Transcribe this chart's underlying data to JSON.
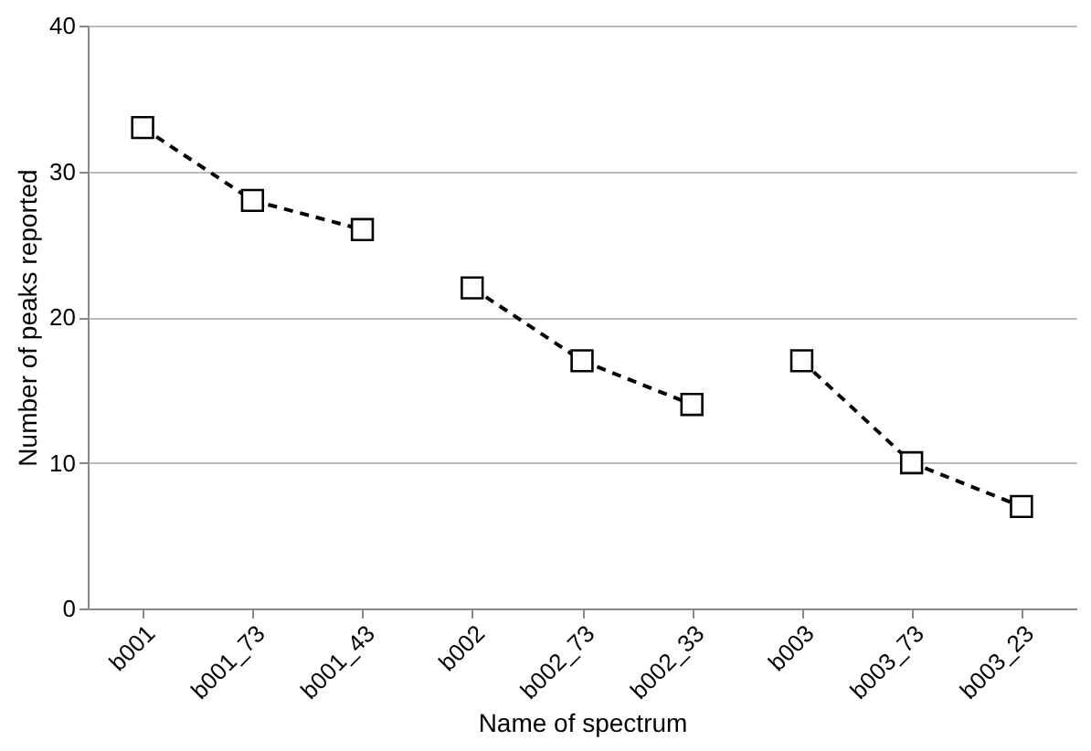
{
  "chart_data": {
    "type": "line",
    "xlabel": "Name of spectrum",
    "ylabel": "Number of peaks reported",
    "categories": [
      "b001",
      "b001_73",
      "b001_43",
      "b002",
      "b002_73",
      "b002_33",
      "b003",
      "b003_73",
      "b003_23"
    ],
    "series": [
      {
        "color": "#000000",
        "values": [
          33,
          28,
          26,
          null,
          null,
          null,
          null,
          null,
          null
        ]
      },
      {
        "color": "#000000",
        "values": [
          null,
          null,
          null,
          22,
          17,
          14,
          null,
          null,
          null
        ]
      },
      {
        "color": "#000000",
        "values": [
          null,
          null,
          null,
          null,
          null,
          null,
          17,
          10,
          7
        ]
      }
    ],
    "ylim": [
      0,
      40
    ],
    "yticks": [
      0,
      10,
      20,
      30,
      40
    ],
    "grid": "y",
    "marker": "square",
    "line_style": "dashed"
  }
}
